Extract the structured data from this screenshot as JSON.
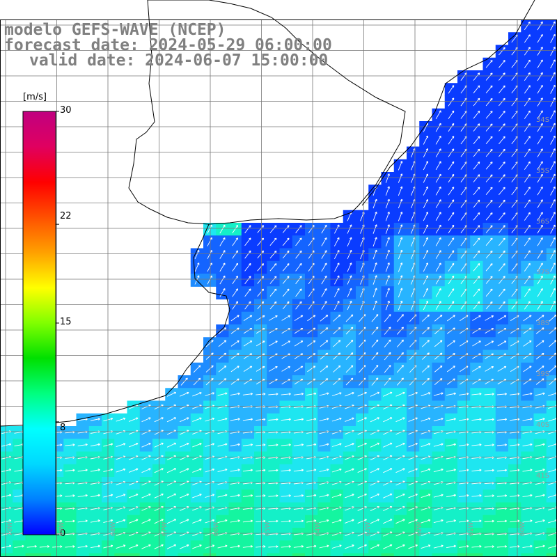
{
  "title": {
    "line1": "modelo GEFS-WAVE (NCEP)",
    "line2": "forecast date: 2024-05-29 06:00:00",
    "line3": "valid date: 2024-06-07 15:00:00"
  },
  "colorbar": {
    "unit": "[m/s]",
    "ticks": [
      "30",
      "22",
      "15",
      "8",
      "0"
    ],
    "tick_values": [
      30,
      22,
      15,
      8,
      0
    ],
    "range": [
      0,
      30
    ],
    "colors": [
      "#0000ff",
      "#0080ff",
      "#00d8ff",
      "#00ffff",
      "#00ff80",
      "#00e000",
      "#80ff00",
      "#ffff00",
      "#ffa000",
      "#ff5000",
      "#ff0000",
      "#e00060",
      "#c00080"
    ]
  },
  "map": {
    "lat_labels": [
      "34S",
      "35S",
      "36S",
      "37S",
      "38S",
      "39S",
      "40S",
      "41S"
    ],
    "lon_labels": [
      "70W",
      "69W",
      "68W",
      "67W",
      "66W",
      "65W",
      "64W",
      "63W",
      "62W",
      "61W",
      "60W"
    ],
    "field": "wind speed",
    "ocean_colors": [
      "#0a3cff",
      "#1464ff",
      "#1e8cff",
      "#28b4ff",
      "#1ee6f0",
      "#14f0c8",
      "#14f5a0",
      "#28f078",
      "#3cf050"
    ],
    "land_color": "#ffffff",
    "arrow_color": "#ffffff"
  }
}
